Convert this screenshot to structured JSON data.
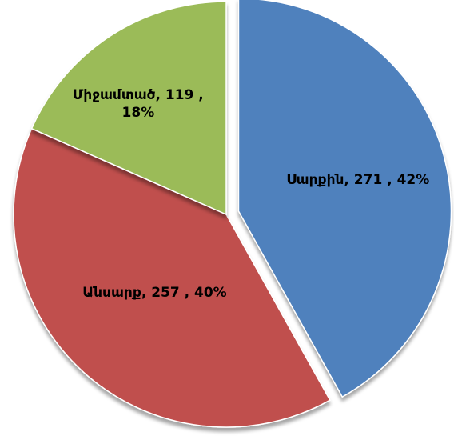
{
  "chart_data": {
    "type": "pie",
    "values": [
      271,
      257,
      119
    ],
    "value_labels": [
      "Սարքին, 271 , 42%",
      "Անսարք, 257 , 40%",
      "Միջամտած, 119 , 18%"
    ],
    "colors": [
      "#4f81bd",
      "#c0504d",
      "#9bbb59"
    ],
    "exploded": [
      true,
      false,
      false
    ]
  }
}
